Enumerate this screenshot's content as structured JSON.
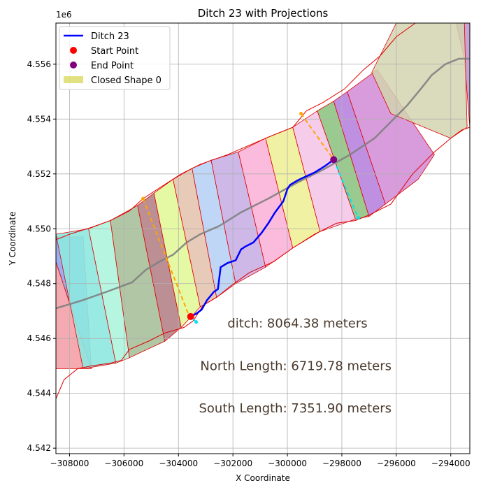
{
  "chart_data": {
    "type": "line",
    "title": "Ditch 23 with Projections",
    "xlabel": "X Coordinate",
    "ylabel": "Y Coordinate",
    "y_offset_label": "1e6",
    "xlim": [
      -308500,
      -293300
    ],
    "ylim": [
      4541800,
      4557500
    ],
    "xticks": [
      -308000,
      -306000,
      -304000,
      -302000,
      -300000,
      -298000,
      -296000,
      -294000
    ],
    "xtick_labels": [
      "−308000",
      "−306000",
      "−304000",
      "−302000",
      "−300000",
      "−298000",
      "−296000",
      "−294000"
    ],
    "yticks": [
      4542000,
      4544000,
      4546000,
      4548000,
      4550000,
      4552000,
      4554000,
      4556000
    ],
    "ytick_labels": [
      "4.542",
      "4.544",
      "4.546",
      "4.548",
      "4.550",
      "4.552",
      "4.554",
      "4.556"
    ],
    "grid": true,
    "legend_position": "upper-left",
    "legend": [
      {
        "label": "Ditch 23",
        "kind": "line",
        "color": "#0000ff"
      },
      {
        "label": "Start Point",
        "kind": "dot",
        "color": "#ff0000"
      },
      {
        "label": "End Point",
        "kind": "dot",
        "color": "#800080"
      },
      {
        "label": "Closed Shape 0",
        "kind": "patch",
        "color": "#d4d44a"
      }
    ],
    "annotations": [
      {
        "text": "ditch: 8064.38 meters",
        "x": -302200,
        "y": 4546400
      },
      {
        "text": "North Length: 6719.78 meters",
        "x": -303200,
        "y": 4544850
      },
      {
        "text": "South Length: 7351.90 meters",
        "x": -303250,
        "y": 4543300
      }
    ],
    "ditch": {
      "name": "Ditch 23",
      "color": "#0000ff",
      "x": [
        -303550,
        -303350,
        -303150,
        -302950,
        -302700,
        -302550,
        -302450,
        -302200,
        -301900,
        -301700,
        -301550,
        -301250,
        -300950,
        -300700,
        -300450,
        -300150,
        -300000,
        -299900,
        -299650,
        -299450,
        -299000,
        -298600,
        -298300
      ],
      "y": [
        4546800,
        4546900,
        4547050,
        4547400,
        4547700,
        4547800,
        4548600,
        4548750,
        4548850,
        4549250,
        4549350,
        4549500,
        4549850,
        4550200,
        4550600,
        4551000,
        4551450,
        4551600,
        4551750,
        4551850,
        4552050,
        4552300,
        4552520
      ]
    },
    "centerline": {
      "color": "#808080",
      "x": [
        -308500,
        -307500,
        -306500,
        -305700,
        -305200,
        -304700,
        -304200,
        -303700,
        -303200,
        -302500,
        -301700,
        -300700,
        -299700,
        -298700,
        -297700,
        -296800,
        -296200,
        -295600,
        -295100,
        -294700,
        -294200,
        -293700,
        -293300
      ],
      "y": [
        4547100,
        4547400,
        4547750,
        4548050,
        4548500,
        4548800,
        4549050,
        4549500,
        4549800,
        4550100,
        4550600,
        4551100,
        4551650,
        4552150,
        4552700,
        4553300,
        4553900,
        4554500,
        4555100,
        4555600,
        4556000,
        4556200,
        4556200
      ]
    },
    "start_point": {
      "x": -303550,
      "y": 4546800,
      "color": "#ff0000"
    },
    "end_point": {
      "x": -298300,
      "y": 4552520,
      "color": "#800080"
    },
    "north_projection": {
      "color": "#ffa500",
      "x": [
        -305300,
        -303600
      ],
      "y": [
        4551100,
        4546800
      ]
    },
    "north_projection_2": {
      "color": "#ffa500",
      "x": [
        -299500,
        -298300
      ],
      "y": [
        4554200,
        4552520
      ]
    },
    "south_projection": {
      "color": "#00e5ee",
      "x": [
        -303350,
        -303550
      ],
      "y": [
        4546600,
        4546800
      ]
    },
    "south_projection_2": {
      "color": "#00e5ee",
      "x": [
        -298300,
        -297400
      ],
      "y": [
        4552520,
        4550400
      ]
    },
    "boundary": {
      "north": [
        [
          -308500,
          4549600
        ],
        [
          -308000,
          4549800
        ],
        [
          -307200,
          4550050
        ],
        [
          -306500,
          4550300
        ],
        [
          -305800,
          4550650
        ],
        [
          -305300,
          4551100
        ],
        [
          -304600,
          4551550
        ],
        [
          -303900,
          4552000
        ],
        [
          -303200,
          4552350
        ],
        [
          -302200,
          4552700
        ],
        [
          -301500,
          4553000
        ],
        [
          -300800,
          4553300
        ],
        [
          -299800,
          4553700
        ],
        [
          -299300,
          4554300
        ],
        [
          -298700,
          4554600
        ],
        [
          -297900,
          4555100
        ],
        [
          -297200,
          4555800
        ],
        [
          -296600,
          4556300
        ],
        [
          -296000,
          4557000
        ],
        [
          -295300,
          4557500
        ],
        [
          -293300,
          4557500
        ]
      ],
      "south": [
        [
          -293300,
          4553700
        ],
        [
          -293600,
          4553600
        ],
        [
          -294000,
          4553300
        ],
        [
          -294600,
          4552800
        ],
        [
          -295400,
          4552000
        ],
        [
          -296200,
          4550900
        ],
        [
          -297000,
          4550500
        ],
        [
          -297500,
          4550300
        ],
        [
          -298200,
          4550200
        ],
        [
          -299000,
          4549800
        ],
        [
          -299800,
          4549300
        ],
        [
          -300500,
          4548800
        ],
        [
          -301400,
          4548400
        ],
        [
          -302100,
          4547900
        ],
        [
          -302600,
          4547500
        ],
        [
          -303100,
          4547200
        ],
        [
          -303450,
          4546650
        ],
        [
          -303800,
          4546400
        ],
        [
          -304500,
          4546200
        ],
        [
          -305100,
          4545900
        ],
        [
          -305800,
          4545600
        ],
        [
          -306100,
          4545200
        ],
        [
          -306500,
          4545100
        ],
        [
          -307200,
          4545000
        ],
        [
          -307700,
          4544900
        ],
        [
          -308200,
          4544500
        ],
        [
          -308500,
          4543800
        ]
      ]
    },
    "closed_shape": {
      "label": "Closed Shape 0",
      "color": "#d4d4b0",
      "polygon": [
        [
          -296900,
          4555700
        ],
        [
          -296000,
          4557500
        ],
        [
          -293500,
          4557500
        ],
        [
          -293400,
          4553700
        ],
        [
          -294000,
          4553300
        ],
        [
          -296200,
          4554200
        ]
      ]
    },
    "strips": [
      {
        "color": "#f4a0a8",
        "x": [
          -308500,
          -308500,
          -307200
        ],
        "y": [
          4544900,
          4548800,
          4544900
        ]
      },
      {
        "color": "#8fa5f0",
        "x": [
          -308500,
          -307200,
          -307500,
          -308500
        ],
        "y": [
          4548800,
          4544900,
          4549700,
          4549700
        ]
      },
      {
        "color": "#8de8e0",
        "x": [
          -308500,
          -307500,
          -306300,
          -307300
        ],
        "y": [
          4549800,
          4544900,
          4545100,
          4550000
        ]
      },
      {
        "color": "#aef5de",
        "x": [
          -307300,
          -306300,
          -305800,
          -306500
        ],
        "y": [
          4550000,
          4545100,
          4545300,
          4550300
        ]
      },
      {
        "color": "#a8c09a",
        "x": [
          -306500,
          -305800,
          -304500,
          -305500
        ],
        "y": [
          4550300,
          4545300,
          4545900,
          4550850
        ]
      },
      {
        "color": "#b58388",
        "x": [
          -305500,
          -304500,
          -303900,
          -304900
        ],
        "y": [
          4550850,
          4545900,
          4546400,
          4551300
        ]
      },
      {
        "color": "#e2f79a",
        "x": [
          -304900,
          -303900,
          -303200,
          -304200
        ],
        "y": [
          4551300,
          4546400,
          4547150,
          4551800
        ]
      },
      {
        "color": "#e6c4b0",
        "x": [
          -304200,
          -303200,
          -302600,
          -303500
        ],
        "y": [
          4551800,
          4547150,
          4547500,
          4552200
        ]
      },
      {
        "color": "#b8d1f5",
        "x": [
          -303500,
          -302600,
          -301900,
          -302800
        ],
        "y": [
          4552200,
          4547500,
          4548000,
          4552500
        ]
      },
      {
        "color": "#c8b0e6",
        "x": [
          -302800,
          -301900,
          -300800,
          -301800
        ],
        "y": [
          4552500,
          4548000,
          4548600,
          4552800
        ]
      },
      {
        "color": "#fbb4d8",
        "x": [
          -301800,
          -300800,
          -299800,
          -300800
        ],
        "y": [
          4552800,
          4548600,
          4549300,
          4553300
        ]
      },
      {
        "color": "#efef9a",
        "x": [
          -300800,
          -299800,
          -298800,
          -299800
        ],
        "y": [
          4553300,
          4549300,
          4549900,
          4553700
        ]
      },
      {
        "color": "#f4c8e8",
        "x": [
          -299800,
          -298800,
          -297500,
          -298900
        ],
        "y": [
          4553700,
          4549900,
          4550350,
          4554300
        ]
      },
      {
        "color": "#8fc483",
        "x": [
          -298900,
          -297500,
          -297000,
          -298300
        ],
        "y": [
          4554300,
          4550350,
          4550450,
          4554650
        ]
      },
      {
        "color": "#b884de",
        "x": [
          -298300,
          -297000,
          -296400,
          -297800
        ],
        "y": [
          4554650,
          4550450,
          4550900,
          4555000
        ]
      },
      {
        "color": "#d490d8",
        "x": [
          -297800,
          -296400,
          -295200,
          -294600,
          -296700
        ],
        "y": [
          4555000,
          4550900,
          4551800,
          4552700,
          4555800
        ]
      },
      {
        "color": "#c09ad0",
        "x": [
          -293800,
          -293300,
          -293300,
          -293500
        ],
        "y": [
          4557500,
          4557500,
          4553700,
          4556200
        ]
      }
    ]
  }
}
